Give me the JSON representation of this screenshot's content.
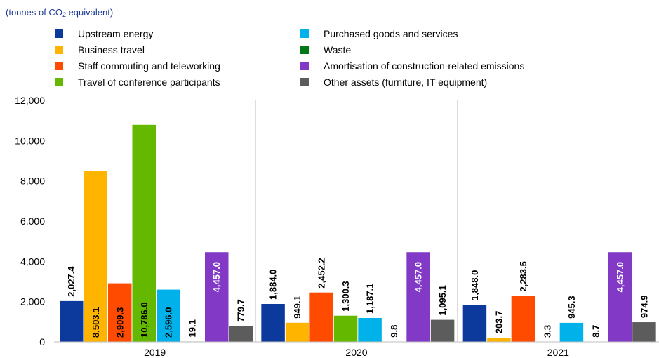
{
  "chart_data": {
    "type": "bar",
    "unit_prefix": "(tonnes of CO",
    "unit_sub": "2",
    "unit_suffix": " equivalent)",
    "categories": [
      "2019",
      "2020",
      "2021"
    ],
    "ylim": [
      0,
      12000
    ],
    "yticks": [
      0,
      2000,
      4000,
      6000,
      8000,
      10000,
      12000
    ],
    "ytick_labels": [
      "0",
      "2,000",
      "4,000",
      "6,000",
      "8,000",
      "10,000",
      "12,000"
    ],
    "grid": "vertical separators between categories",
    "legend_position": "top",
    "series": [
      {
        "name": "Upstream energy",
        "color": "#0b3a9c",
        "values": [
          2027.4,
          1884.0,
          1848.0
        ],
        "labels": [
          "2,027.4",
          "1,884.0",
          "1,848.0"
        ]
      },
      {
        "name": "Business travel",
        "color": "#ffb400",
        "values": [
          8503.1,
          949.1,
          203.7
        ],
        "labels": [
          "8,503.1",
          "949.1",
          "203.7"
        ]
      },
      {
        "name": "Staff commuting and teleworking",
        "color": "#ff4b00",
        "values": [
          2909.3,
          2452.2,
          2283.5
        ],
        "labels": [
          "2,909.3",
          "2,452.2",
          "2,283.5"
        ]
      },
      {
        "name": "Travel of conference participants",
        "color": "#65b800",
        "values": [
          10786.0,
          1300.3,
          3.3
        ],
        "labels": [
          "10,786.0",
          "1,300.3",
          "3.3"
        ]
      },
      {
        "name": "Purchased goods and services",
        "color": "#00b1ea",
        "values": [
          2596.0,
          1187.1,
          945.3
        ],
        "labels": [
          "2,596.0",
          "1,187.1",
          "945.3"
        ]
      },
      {
        "name": "Waste",
        "color": "#007816",
        "values": [
          19.1,
          9.8,
          8.7
        ],
        "labels": [
          "19.1",
          "9.8",
          "8.7"
        ]
      },
      {
        "name": "Amortisation of construction-related emissions",
        "color": "#8139c6",
        "values": [
          4457.0,
          4457.0,
          4457.0
        ],
        "labels": [
          "4,457.0",
          "4,457.0",
          "4,457.0"
        ]
      },
      {
        "name": "Other assets (furniture, IT equipment)",
        "color": "#5c5c5c",
        "values": [
          779.7,
          1095.1,
          974.9
        ],
        "labels": [
          "779.7",
          "1,095.1",
          "974.9"
        ]
      }
    ],
    "legend_order": [
      0,
      4,
      1,
      5,
      2,
      6,
      3,
      7
    ]
  }
}
